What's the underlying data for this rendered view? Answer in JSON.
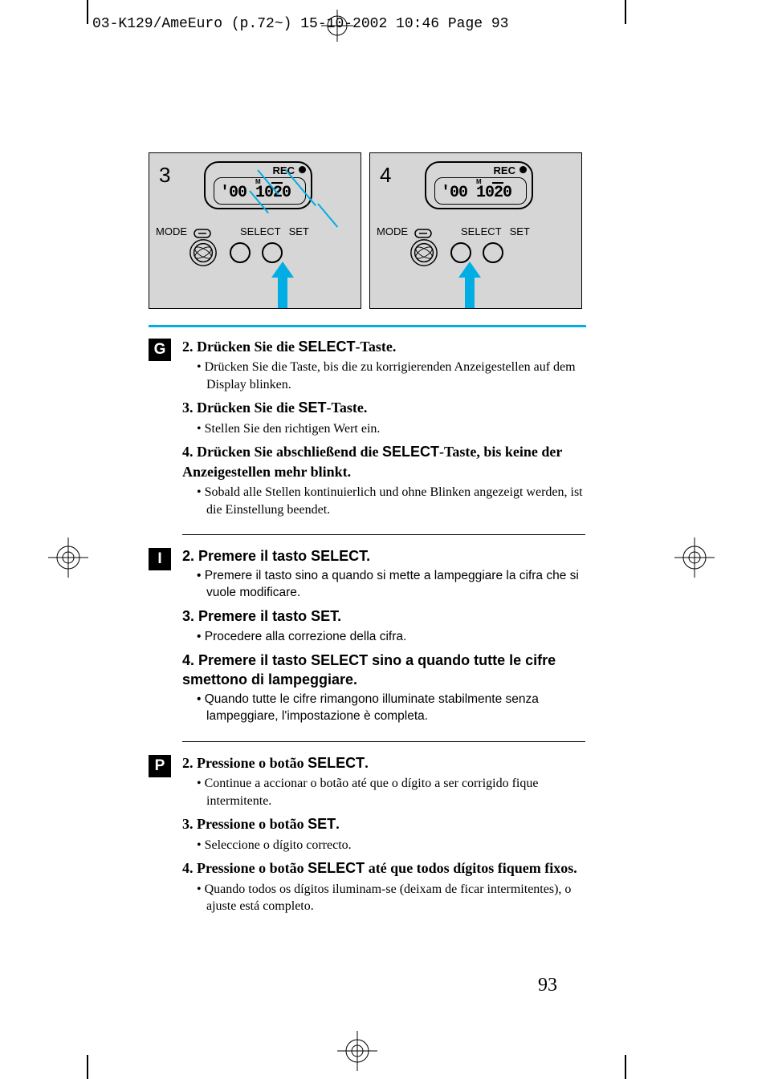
{
  "header": {
    "slug": "03-K129/AmeEuro (p.72~)  15-10-2002  10:46  Page 93"
  },
  "diagrams": [
    {
      "step": "3",
      "rec": "REC",
      "digits": "'00 1020",
      "mode": "MODE",
      "select": "SELECT",
      "set": "SET",
      "blinking": true
    },
    {
      "step": "4",
      "rec": "REC",
      "digits": "'00 1020",
      "mode": "MODE",
      "select": "SELECT",
      "set": "SET",
      "blinking": false
    }
  ],
  "colors": {
    "accent": "#00aee3",
    "diagram_bg": "#d6d6d6"
  },
  "sections": [
    {
      "badge": "G",
      "sans": false,
      "steps": [
        {
          "title_pre": "2. Drücken Sie die ",
          "title_kw": "SELECT",
          "title_post": "-Taste.",
          "bullets": [
            "Drücken Sie die Taste, bis die zu korrigierenden Anzeigestellen auf dem Display blinken."
          ]
        },
        {
          "title_pre": "3. Drücken Sie die ",
          "title_kw": "SET",
          "title_post": "-Taste.",
          "bullets": [
            "Stellen Sie den richtigen Wert ein."
          ]
        },
        {
          "title_pre": "4. Drücken Sie abschließend die ",
          "title_kw": "SELECT",
          "title_post": "-Taste, bis keine der Anzeigestellen mehr blinkt.",
          "bullets": [
            "Sobald alle Stellen kontinuierlich und ohne Blinken angezeigt werden, ist die Einstellung beendet."
          ]
        }
      ]
    },
    {
      "badge": "I",
      "sans": true,
      "steps": [
        {
          "title_pre": "2. Premere il tasto ",
          "title_kw": "SELECT",
          "title_post": ".",
          "bullets": [
            "Premere il tasto sino a quando si mette a lampeggiare la cifra che si vuole modificare."
          ]
        },
        {
          "title_pre": "3. Premere il tasto ",
          "title_kw": "SET",
          "title_post": ".",
          "bullets": [
            "Procedere alla correzione della cifra."
          ]
        },
        {
          "title_pre": "4. Premere il tasto ",
          "title_kw": "SELECT",
          "title_post": " sino a quando tutte le cifre smettono di lampeggiare.",
          "bullets": [
            "Quando tutte le cifre rimangono illuminate stabilmente senza lampeggiare, l'impostazione è completa."
          ]
        }
      ]
    },
    {
      "badge": "P",
      "sans": false,
      "steps": [
        {
          "title_pre": "2. Pressione o botão ",
          "title_kw": "SELECT",
          "title_post": ".",
          "bullets": [
            "Continue a accionar o botão até que o dígito a ser corrigido fique intermitente."
          ]
        },
        {
          "title_pre": "3. Pressione o botão ",
          "title_kw": "SET",
          "title_post": ".",
          "bullets": [
            "Seleccione o dígito correcto."
          ]
        },
        {
          "title_pre": "4. Pressione o botão ",
          "title_kw": "SELECT",
          "title_post": " até que todos dígitos fiquem fixos.",
          "bullets": [
            "Quando todos os dígitos iluminam-se (deixam de ficar intermitentes), o ajuste está completo."
          ]
        }
      ]
    }
  ],
  "page_number": "93"
}
